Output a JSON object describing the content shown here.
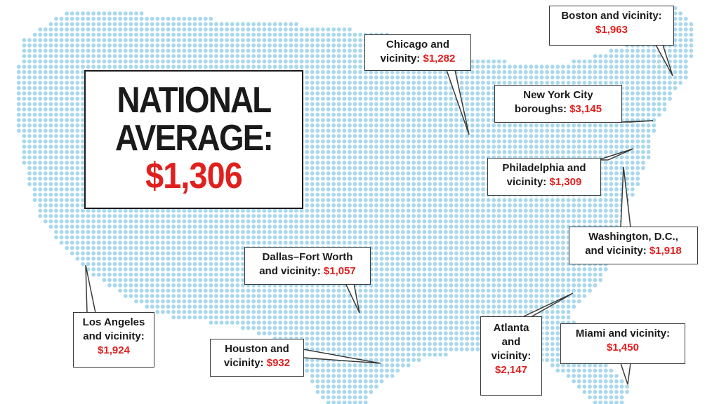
{
  "colors": {
    "dot": "#a9d8ec",
    "value_red": "#e0201e",
    "border": "#3a3a3a",
    "text": "#1a1a1a"
  },
  "national": {
    "line1": "NATIONAL",
    "line2": "AVERAGE:",
    "value": "$1,306"
  },
  "callouts": [
    {
      "id": "boston",
      "label": "Boston and vicinity:",
      "value": "$1,963"
    },
    {
      "id": "chicago",
      "label": "Chicago and\nvicinity:",
      "value": "$1,282"
    },
    {
      "id": "nyc",
      "label": "New York City\nboroughs:",
      "value": "$3,145"
    },
    {
      "id": "philadelphia",
      "label": "Philadelphia and\nvicinity:",
      "value": "$1,309"
    },
    {
      "id": "washington",
      "label": "Washington, D.C.,\nand vicinity:",
      "value": "$1,918"
    },
    {
      "id": "dallas",
      "label": "Dallas–Fort Worth\nand vicinity:",
      "value": "$1,057"
    },
    {
      "id": "losangeles",
      "label": "Los Angeles\nand vicinity:",
      "value": "$1,924"
    },
    {
      "id": "houston",
      "label": "Houston and\nvicinity:",
      "value": "$932"
    },
    {
      "id": "atlanta",
      "label": "Atlanta\nand\nvicinity:",
      "value": "$2,147"
    },
    {
      "id": "miami",
      "label": "Miami and vicinity:",
      "value": "$1,450"
    }
  ]
}
